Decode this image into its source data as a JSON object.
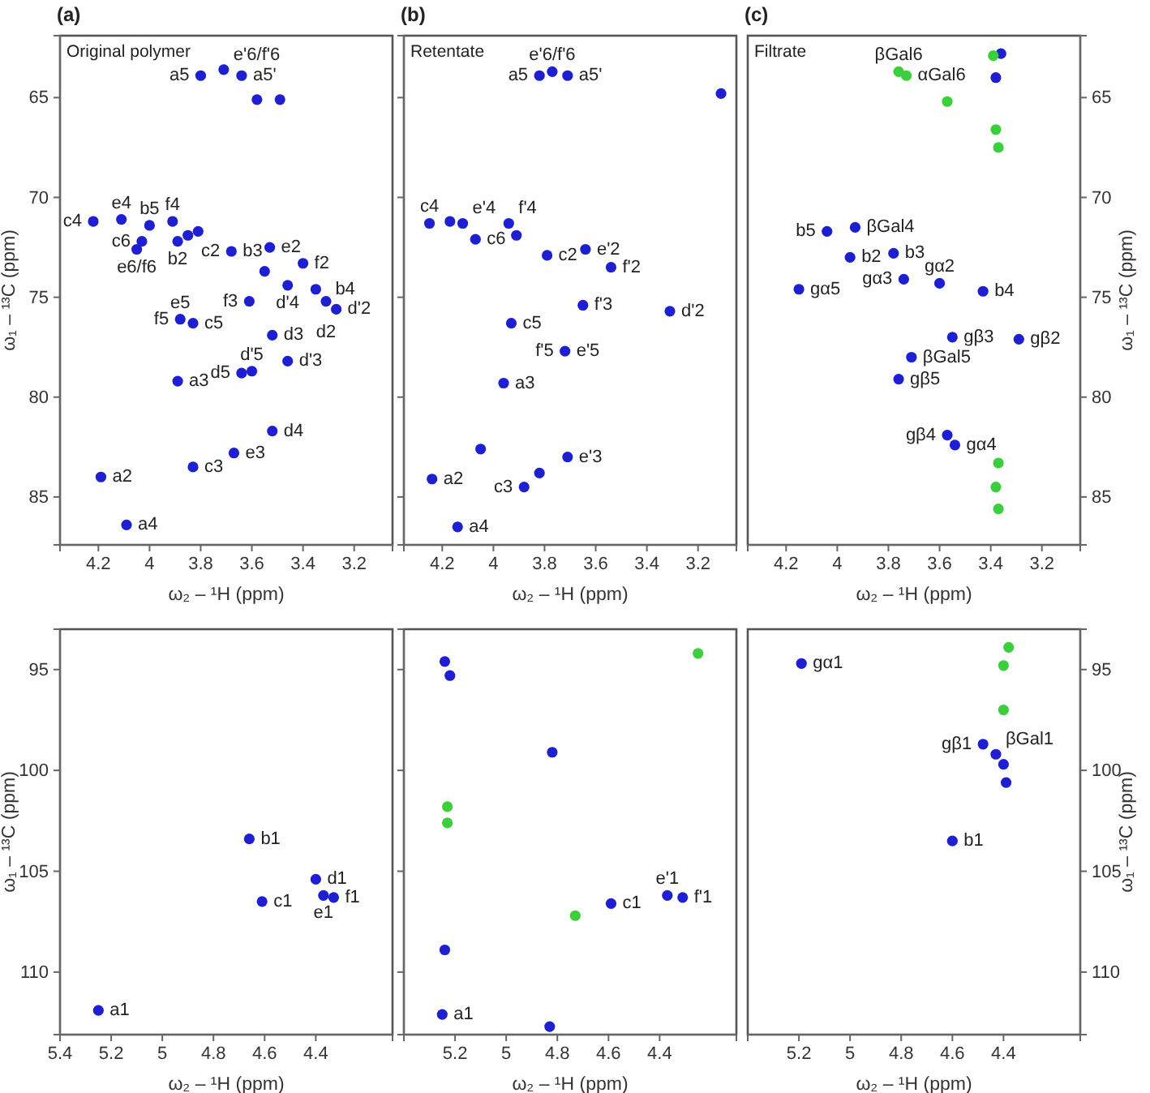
{
  "chart_data": [
    {
      "type": "scatter",
      "title": "(a)",
      "subtitle": "Original polymer",
      "xlabel": "ω₂ – ¹H  (ppm)",
      "ylabel": "ω₁ – ¹³C  (ppm)",
      "marker": "circle",
      "xlim": [
        4.35,
        3.05
      ],
      "xticks": [
        4.2,
        4.0,
        3.8,
        3.6,
        3.4,
        3.2
      ],
      "ylim": [
        87.4,
        61.9
      ],
      "yticks": [
        65,
        70,
        75,
        80,
        85
      ],
      "series": [
        {
          "color": "#1f1fd2",
          "x": [
            3.8,
            3.71,
            3.64,
            3.58,
            3.49,
            4.22,
            4.11,
            4.0,
            4.03,
            4.05,
            3.91,
            3.85,
            3.81,
            3.89,
            3.68,
            3.53,
            3.55,
            3.4,
            3.46,
            3.35,
            3.31,
            3.27,
            3.61,
            3.88,
            3.83,
            3.52,
            3.46,
            3.89,
            3.64,
            3.6,
            3.52,
            3.67,
            3.83,
            4.19,
            4.09
          ],
          "values": [
            63.9,
            63.6,
            63.9,
            65.1,
            65.1,
            71.2,
            71.1,
            71.4,
            72.2,
            72.6,
            71.2,
            71.9,
            71.7,
            72.2,
            72.7,
            72.5,
            73.7,
            73.3,
            74.4,
            74.6,
            75.2,
            75.6,
            75.2,
            76.1,
            76.3,
            76.9,
            78.2,
            79.2,
            78.8,
            78.7,
            81.7,
            82.8,
            83.5,
            84.0,
            86.4
          ]
        }
      ],
      "annotations": [
        {
          "text": "e'6/f'6",
          "x": 3.71,
          "y": 63.6
        },
        {
          "text": "a5",
          "x": 3.8,
          "y": 63.9
        },
        {
          "text": "a5'",
          "x": 3.64,
          "y": 63.9
        },
        {
          "text": "c4",
          "x": 4.22,
          "y": 71.2
        },
        {
          "text": "e4",
          "x": 4.11,
          "y": 71.1
        },
        {
          "text": "b5",
          "x": 4.0,
          "y": 71.4
        },
        {
          "text": "f4",
          "x": 3.91,
          "y": 71.2
        },
        {
          "text": "c6",
          "x": 4.03,
          "y": 72.2
        },
        {
          "text": "e6/f6",
          "x": 4.05,
          "y": 72.6
        },
        {
          "text": "b2",
          "x": 3.89,
          "y": 72.2
        },
        {
          "text": "b3",
          "x": 3.68,
          "y": 72.7
        },
        {
          "text": "c2",
          "x": 3.68,
          "y": 72.7
        },
        {
          "text": "e2",
          "x": 3.53,
          "y": 72.5
        },
        {
          "text": "f2",
          "x": 3.4,
          "y": 73.3
        },
        {
          "text": "d'4",
          "x": 3.46,
          "y": 74.4
        },
        {
          "text": "b4",
          "x": 3.35,
          "y": 74.6
        },
        {
          "text": "d'2",
          "x": 3.27,
          "y": 75.6
        },
        {
          "text": "d2",
          "x": 3.31,
          "y": 75.2
        },
        {
          "text": "f3",
          "x": 3.61,
          "y": 75.2
        },
        {
          "text": "f5",
          "x": 3.88,
          "y": 76.1
        },
        {
          "text": "e5",
          "x": 3.88,
          "y": 76.1
        },
        {
          "text": "c5",
          "x": 3.83,
          "y": 76.3
        },
        {
          "text": "d3",
          "x": 3.52,
          "y": 76.9
        },
        {
          "text": "d'3",
          "x": 3.46,
          "y": 78.2
        },
        {
          "text": "d5",
          "x": 3.64,
          "y": 78.8
        },
        {
          "text": "d'5",
          "x": 3.6,
          "y": 78.7
        },
        {
          "text": "a3",
          "x": 3.89,
          "y": 79.2
        },
        {
          "text": "d4",
          "x": 3.52,
          "y": 81.7
        },
        {
          "text": "e3",
          "x": 3.67,
          "y": 82.8
        },
        {
          "text": "c3",
          "x": 3.83,
          "y": 83.5
        },
        {
          "text": "a2",
          "x": 4.19,
          "y": 84.0
        },
        {
          "text": "a4",
          "x": 4.09,
          "y": 86.4
        }
      ]
    },
    {
      "type": "scatter",
      "title": "(b)",
      "subtitle": "Retentate",
      "xlabel": "ω₂ – ¹H  (ppm)",
      "marker": "circle",
      "tick_labels": "x",
      "xlim": [
        4.35,
        3.05
      ],
      "xticks": [
        4.2,
        4.0,
        3.8,
        3.6,
        3.4,
        3.2
      ],
      "ylim": [
        87.4,
        61.9
      ],
      "yticks": [
        65,
        70,
        75,
        80,
        85
      ],
      "series": [
        {
          "color": "#1f1fd2",
          "x": [
            3.82,
            3.77,
            3.71,
            3.11,
            4.25,
            4.17,
            4.12,
            3.94,
            4.07,
            3.91,
            3.79,
            3.64,
            3.54,
            3.65,
            3.31,
            3.93,
            3.72,
            3.96,
            4.05,
            3.71,
            3.82,
            3.88,
            4.24,
            4.14
          ],
          "values": [
            63.9,
            63.7,
            63.9,
            64.8,
            71.3,
            71.2,
            71.3,
            71.3,
            72.1,
            71.9,
            72.9,
            72.6,
            73.5,
            75.4,
            75.7,
            76.3,
            77.7,
            79.3,
            82.6,
            83.0,
            83.8,
            84.5,
            84.1,
            86.5
          ]
        }
      ],
      "annotations": [
        {
          "text": "e'6/f'6",
          "x": 3.77,
          "y": 63.7
        },
        {
          "text": "a5",
          "x": 3.82,
          "y": 63.9
        },
        {
          "text": "a5'",
          "x": 3.71,
          "y": 63.9
        },
        {
          "text": "c4",
          "x": 4.25,
          "y": 71.3
        },
        {
          "text": "e'4",
          "x": 4.12,
          "y": 71.3
        },
        {
          "text": "f'4",
          "x": 3.94,
          "y": 71.3
        },
        {
          "text": "c6",
          "x": 4.07,
          "y": 72.1
        },
        {
          "text": "c2",
          "x": 3.79,
          "y": 72.9
        },
        {
          "text": "e'2",
          "x": 3.64,
          "y": 72.6
        },
        {
          "text": "f'2",
          "x": 3.54,
          "y": 73.5
        },
        {
          "text": "f'3",
          "x": 3.65,
          "y": 75.4
        },
        {
          "text": "d'2",
          "x": 3.31,
          "y": 75.7
        },
        {
          "text": "c5",
          "x": 3.93,
          "y": 76.3
        },
        {
          "text": "e'5",
          "x": 3.72,
          "y": 77.7
        },
        {
          "text": "f'5",
          "x": 3.72,
          "y": 77.7
        },
        {
          "text": "a3",
          "x": 3.96,
          "y": 79.3
        },
        {
          "text": "e'3",
          "x": 3.71,
          "y": 83.0
        },
        {
          "text": "c3",
          "x": 3.88,
          "y": 84.5
        },
        {
          "text": "a2",
          "x": 4.24,
          "y": 84.1
        },
        {
          "text": "a4",
          "x": 4.14,
          "y": 86.5
        }
      ]
    },
    {
      "type": "scatter",
      "title": "(c)",
      "subtitle": "Filtrate",
      "xlabel": "ω₂ – ¹H  (ppm)",
      "ylabel": "ω₁ – ¹³C  (ppm)",
      "marker": "circle",
      "xlim": [
        4.35,
        3.05
      ],
      "xticks": [
        4.2,
        4.0,
        3.8,
        3.6,
        3.4,
        3.2
      ],
      "ylim": [
        87.4,
        61.9
      ],
      "yticks": [
        65,
        70,
        75,
        80,
        85
      ],
      "series": [
        {
          "color": "#1f1fd2",
          "x": [
            3.36,
            3.38,
            4.04,
            3.93,
            3.78,
            3.95,
            4.15,
            3.74,
            3.6,
            3.43,
            3.55,
            3.29,
            3.71,
            3.76,
            3.57,
            3.54
          ],
          "values": [
            62.8,
            64.0,
            71.7,
            71.5,
            72.8,
            73.0,
            74.6,
            74.1,
            74.3,
            74.7,
            77.0,
            77.1,
            78.0,
            79.1,
            81.9,
            82.4
          ]
        },
        {
          "color": "#3ccf3c",
          "x": [
            3.76,
            3.73,
            3.39,
            3.57,
            3.38,
            3.37,
            3.37,
            3.38,
            3.37
          ],
          "values": [
            63.7,
            63.9,
            62.9,
            65.2,
            66.6,
            67.5,
            83.3,
            84.5,
            85.6
          ]
        }
      ],
      "annotations": [
        {
          "text": "βGal6",
          "x": 3.76,
          "y": 63.7
        },
        {
          "text": "αGal6",
          "x": 3.73,
          "y": 63.9
        },
        {
          "text": "b5",
          "x": 4.04,
          "y": 71.7
        },
        {
          "text": "βGal4",
          "x": 3.93,
          "y": 71.5
        },
        {
          "text": "b3",
          "x": 3.78,
          "y": 72.8
        },
        {
          "text": "b2",
          "x": 3.95,
          "y": 73.0
        },
        {
          "text": "gα5",
          "x": 4.15,
          "y": 74.6
        },
        {
          "text": "gα3",
          "x": 3.74,
          "y": 74.1
        },
        {
          "text": "gα2",
          "x": 3.6,
          "y": 74.3
        },
        {
          "text": "b4",
          "x": 3.43,
          "y": 74.7
        },
        {
          "text": "gβ3",
          "x": 3.55,
          "y": 77.0
        },
        {
          "text": "gβ2",
          "x": 3.29,
          "y": 77.1
        },
        {
          "text": "βGal5",
          "x": 3.71,
          "y": 78.0
        },
        {
          "text": "gβ5",
          "x": 3.76,
          "y": 79.1
        },
        {
          "text": "gβ4",
          "x": 3.57,
          "y": 81.9
        },
        {
          "text": "gα4",
          "x": 3.54,
          "y": 82.4
        }
      ]
    },
    {
      "type": "scatter",
      "xlabel": "ω₂ – ¹H  (ppm)",
      "ylabel": "ω₁ – ¹³C  (ppm)",
      "marker": "circle",
      "xlim": [
        5.4,
        4.1
      ],
      "xticks": [
        5.4,
        5.2,
        5.0,
        4.8,
        4.6,
        4.4
      ],
      "ylim": [
        113.1,
        93.0
      ],
      "yticks": [
        95,
        100,
        105,
        110
      ],
      "series": [
        {
          "color": "#1f1fd2",
          "x": [
            4.66,
            4.61,
            4.4,
            4.37,
            4.33,
            5.25
          ],
          "values": [
            103.4,
            106.5,
            105.4,
            106.2,
            106.3,
            111.9
          ]
        }
      ],
      "annotations": [
        {
          "text": "b1",
          "x": 4.66,
          "y": 103.4
        },
        {
          "text": "d1",
          "x": 4.4,
          "y": 105.4
        },
        {
          "text": "c1",
          "x": 4.61,
          "y": 106.5
        },
        {
          "text": "e1",
          "x": 4.37,
          "y": 106.2
        },
        {
          "text": "f1",
          "x": 4.33,
          "y": 106.3
        },
        {
          "text": "a1",
          "x": 5.25,
          "y": 111.9
        }
      ]
    },
    {
      "type": "scatter",
      "xlabel": "ω₂ – ¹H  (ppm)",
      "marker": "circle",
      "tick_labels": "x",
      "xlim": [
        5.4,
        4.1
      ],
      "xticks": [
        5.2,
        5.0,
        4.8,
        4.6,
        4.4
      ],
      "ylim": [
        113.1,
        93.0
      ],
      "yticks": [
        95,
        100,
        105,
        110
      ],
      "series": [
        {
          "color": "#1f1fd2",
          "x": [
            5.24,
            5.22,
            4.82,
            4.59,
            4.37,
            4.31,
            5.24,
            5.25,
            4.83
          ],
          "values": [
            94.6,
            95.3,
            99.1,
            106.6,
            106.2,
            106.3,
            108.9,
            112.1,
            112.7
          ]
        },
        {
          "color": "#3ccf3c",
          "x": [
            5.23,
            5.23,
            4.73,
            4.25
          ],
          "values": [
            101.8,
            102.6,
            107.2,
            94.2
          ]
        }
      ],
      "annotations": [
        {
          "text": "c1",
          "x": 4.59,
          "y": 106.6
        },
        {
          "text": "e'1",
          "x": 4.37,
          "y": 106.2
        },
        {
          "text": "f'1",
          "x": 4.31,
          "y": 106.3
        },
        {
          "text": "a1",
          "x": 5.25,
          "y": 112.1
        }
      ]
    },
    {
      "type": "scatter",
      "xlabel": "ω₂ – ¹H  (ppm)",
      "ylabel": "ω₁ – ¹³C  (ppm)",
      "marker": "circle",
      "xlim": [
        5.4,
        4.1
      ],
      "xticks": [
        5.2,
        5.0,
        4.8,
        4.6,
        4.4
      ],
      "ylim": [
        113.1,
        93.0
      ],
      "yticks": [
        95,
        100,
        105,
        110
      ],
      "series": [
        {
          "color": "#1f1fd2",
          "x": [
            5.19,
            4.48,
            4.43,
            4.4,
            4.39,
            4.6
          ],
          "values": [
            94.7,
            98.7,
            99.2,
            99.7,
            100.6,
            103.5
          ]
        },
        {
          "color": "#3ccf3c",
          "x": [
            4.38,
            4.4,
            4.4
          ],
          "values": [
            93.9,
            94.8,
            97.0
          ]
        }
      ],
      "annotations": [
        {
          "text": "gα1",
          "x": 5.19,
          "y": 94.7
        },
        {
          "text": "gβ1",
          "x": 4.48,
          "y": 98.7
        },
        {
          "text": "βGal1",
          "x": 4.43,
          "y": 99.2
        },
        {
          "text": "b1",
          "x": 4.6,
          "y": 103.5
        }
      ]
    }
  ]
}
